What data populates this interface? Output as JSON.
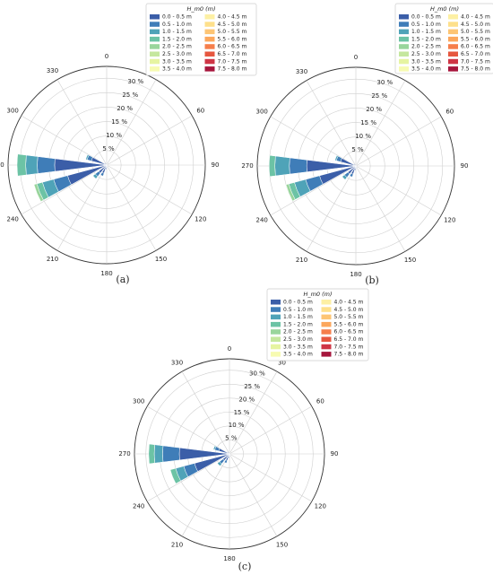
{
  "figure": {
    "legend_title": "H_m0 (m)",
    "bins": [
      "0.0 - 0.5 m",
      "0.5 - 1.0 m",
      "1.0 - 1.5 m",
      "1.5 - 2.0 m",
      "2.0 - 2.5 m",
      "2.5 - 3.0 m",
      "3.0 - 3.5 m",
      "3.5 - 4.0 m",
      "4.0 - 4.5 m",
      "4.5 - 5.0 m",
      "5.0 - 5.5 m",
      "5.5 - 6.0 m",
      "6.0 - 6.5 m",
      "6.5 - 7.0 m",
      "7.0 - 7.5 m",
      "7.5 - 8.0 m"
    ],
    "bin_colors": [
      "#3b5ea8",
      "#3f7db8",
      "#4fa3b8",
      "#6cc3a5",
      "#99d59c",
      "#c5e79e",
      "#e6f4a1",
      "#f7fbb2",
      "#fdf0a4",
      "#fee08b",
      "#fdc574",
      "#fca75c",
      "#f67e4b",
      "#e6573f",
      "#cf3545",
      "#a6153c"
    ],
    "direction_labels": [
      "0",
      "30",
      "60",
      "90",
      "120",
      "150",
      "180",
      "210",
      "240",
      "270",
      "300",
      "330"
    ],
    "radial_labels": [
      "5 %",
      "10 %",
      "15 %",
      "20 %",
      "25 %",
      "30 %"
    ]
  },
  "chart_data": [
    {
      "type": "windrose",
      "caption": "(a)",
      "legend_placement": "top-right",
      "directions_deg": [
        30,
        90,
        120,
        150,
        180,
        210,
        240,
        270,
        300,
        330
      ],
      "radial_ticks_percent": [
        5,
        10,
        15,
        20,
        25,
        30
      ],
      "series": [
        {
          "dir": 270,
          "stack": [
            18,
            6,
            4,
            3
          ]
        },
        {
          "dir": 248,
          "stack": [
            14,
            5,
            4,
            2,
            1
          ]
        },
        {
          "dir": 225,
          "stack": [
            3.5,
            1.5,
            1
          ]
        },
        {
          "dir": 205,
          "stack": [
            3,
            1
          ]
        },
        {
          "dir": 292,
          "stack": [
            5.5,
            1.5,
            0.5
          ]
        },
        {
          "dir": 315,
          "stack": [
            1
          ]
        },
        {
          "dir": 190,
          "stack": [
            1.5
          ]
        },
        {
          "dir": 160,
          "stack": [
            0.8
          ]
        },
        {
          "dir": 100,
          "stack": [
            0.5
          ]
        },
        {
          "dir": 30,
          "stack": [
            0.5
          ]
        }
      ]
    },
    {
      "type": "windrose",
      "caption": "(b)",
      "legend_placement": "top-right",
      "directions_deg": [
        30,
        60,
        90,
        120,
        150,
        180,
        210,
        240,
        270,
        300,
        330
      ],
      "radial_ticks_percent": [
        5,
        10,
        15,
        20,
        25,
        30
      ],
      "series": [
        {
          "dir": 270,
          "stack": [
            17,
            6,
            5,
            2
          ]
        },
        {
          "dir": 248,
          "stack": [
            13,
            5,
            4,
            2,
            1
          ]
        },
        {
          "dir": 225,
          "stack": [
            3.5,
            1.5,
            1
          ]
        },
        {
          "dir": 205,
          "stack": [
            3,
            1
          ]
        },
        {
          "dir": 292,
          "stack": [
            5.5,
            1.5,
            0.5
          ]
        },
        {
          "dir": 315,
          "stack": [
            1
          ]
        },
        {
          "dir": 190,
          "stack": [
            1.5
          ]
        },
        {
          "dir": 160,
          "stack": [
            0.8
          ]
        },
        {
          "dir": 100,
          "stack": [
            0.5
          ]
        },
        {
          "dir": 30,
          "stack": [
            0.5
          ]
        }
      ]
    },
    {
      "type": "windrose",
      "caption": "(c)",
      "legend_placement": "top-right",
      "directions_deg": [
        30,
        60,
        90,
        120,
        150,
        180,
        210,
        240,
        270,
        300,
        330
      ],
      "radial_ticks_percent": [
        5,
        10,
        15,
        20,
        25,
        30
      ],
      "series": [
        {
          "dir": 270,
          "stack": [
            18,
            6,
            3,
            2
          ]
        },
        {
          "dir": 248,
          "stack": [
            13,
            4,
            3,
            2
          ]
        },
        {
          "dir": 225,
          "stack": [
            3,
            1.5,
            1
          ]
        },
        {
          "dir": 205,
          "stack": [
            2.5,
            1
          ]
        },
        {
          "dir": 292,
          "stack": [
            4,
            1.5,
            0.5
          ]
        },
        {
          "dir": 315,
          "stack": [
            1
          ]
        },
        {
          "dir": 190,
          "stack": [
            1.5
          ]
        },
        {
          "dir": 160,
          "stack": [
            0.8
          ]
        },
        {
          "dir": 100,
          "stack": [
            0.5
          ]
        },
        {
          "dir": 30,
          "stack": [
            0.5
          ]
        }
      ]
    }
  ]
}
